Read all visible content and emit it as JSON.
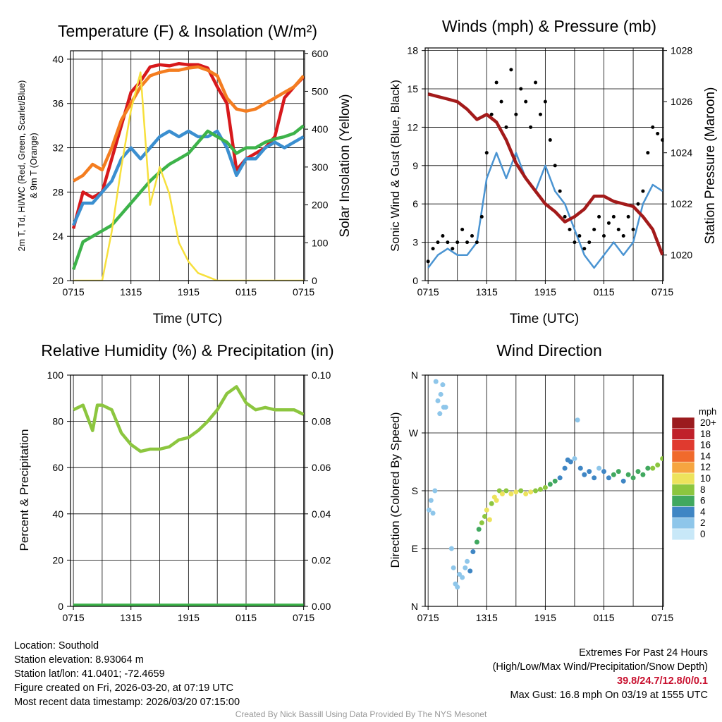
{
  "chart_data": [
    {
      "type": "line",
      "title": "Temperature (F) & Insolation (W/m²)",
      "xlabel": "Time (UTC)",
      "ylabel": [
        "2m T, Td, HI/WC (Red, Green, Scarlet/Blue)",
        "& 9m T (Orange)"
      ],
      "y2label": "Solar Insolation (Yellow)",
      "xticks": [
        "0715",
        "1315",
        "1915",
        "0115",
        "0715"
      ],
      "yticks": [
        20,
        24,
        28,
        32,
        36,
        40
      ],
      "y2ticks": [
        0,
        100,
        200,
        300,
        400,
        500,
        600
      ],
      "ylim": [
        20,
        40.76
      ],
      "y2lim": [
        0,
        607
      ],
      "x_hours": [
        0,
        1,
        2,
        3,
        4,
        5,
        6,
        7,
        8,
        9,
        10,
        11,
        12,
        13,
        14,
        15,
        16,
        17,
        18,
        19,
        20,
        21,
        22,
        23,
        24
      ],
      "series": [
        {
          "name": "2m T",
          "color": "#d7191c",
          "axis": "left",
          "values": [
            24.7,
            28,
            27.5,
            28,
            31,
            34,
            37,
            38,
            39.3,
            39.5,
            39.4,
            39.6,
            39.5,
            39.5,
            39.2,
            37.5,
            36,
            30,
            31,
            31.5,
            32,
            33,
            36.5,
            37.5,
            38.4
          ]
        },
        {
          "name": "9m T",
          "color": "#f47d20",
          "axis": "left",
          "values": [
            29,
            29.5,
            30.5,
            30,
            32,
            34.5,
            36,
            37.5,
            38.5,
            38.8,
            39,
            39,
            39.2,
            39.3,
            39,
            38.5,
            36.5,
            35.5,
            35.3,
            35.5,
            36,
            36.5,
            37,
            37.5,
            38.5
          ]
        },
        {
          "name": "HI/WC",
          "color": "#3b8fd0",
          "axis": "left",
          "values": [
            25,
            27,
            27,
            28,
            29,
            31,
            32,
            31,
            32,
            33,
            33.5,
            33,
            33.5,
            33,
            33,
            33.5,
            32,
            29.5,
            31,
            31,
            32,
            32.5,
            32,
            32.5,
            33
          ]
        },
        {
          "name": "Td",
          "color": "#3db34a",
          "axis": "left",
          "values": [
            21,
            23.5,
            24,
            24.5,
            25,
            26,
            27,
            28,
            29,
            29.8,
            30.5,
            31,
            31.5,
            32.5,
            33.5,
            33,
            32.5,
            31.5,
            32,
            32,
            32.5,
            32.8,
            33,
            33.3,
            34
          ]
        },
        {
          "name": "Solar Insolation",
          "color": "#f7e03c",
          "axis": "right",
          "values": [
            0,
            0,
            0,
            0,
            130,
            300,
            450,
            550,
            200,
            300,
            230,
            100,
            50,
            20,
            10,
            0,
            0,
            0,
            0,
            0,
            0,
            0,
            0,
            0,
            0
          ]
        }
      ]
    },
    {
      "type": "line",
      "title": "Winds (mph) & Pressure (mb)",
      "xlabel": "Time (UTC)",
      "ylabel": "Sonic Wind & Gust (Blue, Black)",
      "y2label": "Station Pressure (Maroon)",
      "xticks": [
        "0715",
        "1315",
        "1915",
        "0115",
        "0715"
      ],
      "yticks": [
        0,
        3,
        6,
        9,
        12,
        15,
        18
      ],
      "y2ticks": [
        1020,
        1022,
        1024,
        1026,
        1028
      ],
      "ylim": [
        0,
        18.2
      ],
      "y2lim": [
        1019.0,
        1028.1
      ],
      "x_hours": [
        0,
        1,
        2,
        3,
        4,
        5,
        6,
        7,
        8,
        9,
        10,
        11,
        12,
        13,
        14,
        15,
        16,
        17,
        18,
        19,
        20,
        21,
        22,
        23,
        24
      ],
      "series": [
        {
          "name": "Sonic Wind",
          "color": "#4a94d2",
          "axis": "left",
          "values": [
            1,
            2,
            2.5,
            2,
            2,
            3,
            8,
            10,
            8,
            10,
            8,
            7,
            9,
            7,
            6,
            4,
            2,
            1,
            2,
            3,
            2,
            3,
            6,
            7.5,
            7
          ]
        },
        {
          "name": "Station Pressure",
          "color": "#a31a1a",
          "axis": "right",
          "values": [
            1026.3,
            1026.2,
            1026.1,
            1026,
            1025.7,
            1025.3,
            1025.5,
            1025.2,
            1024.5,
            1023.6,
            1023,
            1022.5,
            1022,
            1021.7,
            1021.3,
            1021.5,
            1021.8,
            1022.3,
            1022.3,
            1022.1,
            1022,
            1021.9,
            1021.5,
            1021,
            1020
          ]
        }
      ],
      "gusts": {
        "name": "Gust",
        "color": "#000000",
        "x_hours": [
          0,
          0.5,
          1,
          1.5,
          2,
          2.5,
          3,
          3.5,
          4,
          4.5,
          5,
          5.5,
          6,
          6.5,
          7,
          7.5,
          8,
          8.5,
          9,
          9.5,
          10,
          10.5,
          11,
          11.5,
          12,
          12.5,
          13,
          13.5,
          14,
          14.5,
          15,
          15.5,
          16,
          16.5,
          17,
          17.5,
          18,
          18.5,
          19,
          19.5,
          20,
          20.5,
          21,
          21.5,
          22,
          22.5,
          23,
          23.5,
          24
        ],
        "values": [
          1.5,
          2.5,
          3,
          3.5,
          3,
          2.5,
          3,
          4,
          3,
          3.5,
          3,
          5,
          10,
          13,
          15.5,
          14,
          12,
          16.5,
          13,
          15,
          14,
          12,
          15.5,
          13,
          14,
          11,
          9,
          7,
          5,
          4,
          3,
          3.5,
          2.5,
          3,
          4,
          5,
          3.5,
          4.5,
          5,
          4,
          3.5,
          5,
          4,
          6,
          7,
          10,
          12,
          11.5,
          11
        ]
      }
    },
    {
      "type": "line",
      "title": "Relative Humidity (%) & Precipitation (in)",
      "xlabel": "",
      "ylabel": "Percent & Precipitation",
      "xticks": [
        "0715",
        "1315",
        "1915",
        "0115",
        "0715"
      ],
      "yticks": [
        0,
        20,
        40,
        60,
        80,
        100
      ],
      "y2ticks": [
        "0.00",
        "0.02",
        "0.04",
        "0.06",
        "0.08",
        "0.10"
      ],
      "ylim": [
        0,
        100
      ],
      "y2lim": [
        0,
        0.1
      ],
      "x_hours": [
        0,
        1,
        2,
        2.5,
        3,
        4,
        5,
        6,
        7,
        8,
        9,
        10,
        11,
        12,
        13,
        14,
        15,
        16,
        17,
        18,
        19,
        20,
        21,
        22,
        23,
        24
      ],
      "series": [
        {
          "name": "Relative Humidity",
          "color": "#8cc63f",
          "axis": "left",
          "values": [
            85,
            87,
            76,
            87,
            87,
            85,
            75,
            70,
            67,
            68,
            68,
            69,
            72,
            73,
            76,
            80,
            85,
            92,
            95,
            88,
            85,
            86,
            85,
            85,
            85,
            83
          ]
        },
        {
          "name": "Precipitation",
          "color": "#3db34a",
          "axis": "right",
          "values": [
            0,
            0,
            0,
            0,
            0,
            0,
            0,
            0,
            0,
            0,
            0,
            0,
            0,
            0,
            0,
            0,
            0,
            0,
            0,
            0,
            0,
            0,
            0,
            0,
            0,
            0
          ]
        }
      ]
    },
    {
      "type": "scatter",
      "title": "Wind Direction",
      "xlabel": "",
      "ylabel": "Direction (Colored By Speed)",
      "xticks": [
        "0715",
        "1315",
        "1915",
        "0115",
        "0715"
      ],
      "yticks": [
        "N",
        "E",
        "S",
        "W",
        "N"
      ],
      "ylim": [
        0,
        360
      ],
      "colorbar": {
        "title": "mph",
        "labels": [
          "20+",
          "18",
          "16",
          "14",
          "12",
          "10",
          "8",
          "6",
          "4",
          "2",
          "0"
        ],
        "colors": [
          "#9b1b1e",
          "#c0202a",
          "#e03a2f",
          "#f06a2c",
          "#f6a540",
          "#ede35c",
          "#8cc63f",
          "#41a85f",
          "#3f86c4",
          "#8ec6ea",
          "#c8e8f8"
        ]
      },
      "points": [
        [
          0.1,
          150,
          2
        ],
        [
          0.3,
          165,
          2
        ],
        [
          0.5,
          145,
          2
        ],
        [
          0.7,
          180,
          1
        ],
        [
          0.8,
          350,
          1
        ],
        [
          1,
          320,
          1
        ],
        [
          1.2,
          300,
          2
        ],
        [
          1.3,
          330,
          1
        ],
        [
          1.5,
          345,
          2
        ],
        [
          1.6,
          310,
          2
        ],
        [
          1.8,
          310,
          2
        ],
        [
          2.4,
          90,
          2
        ],
        [
          2.6,
          60,
          2
        ],
        [
          2.8,
          35,
          2
        ],
        [
          3,
          30,
          2
        ],
        [
          3.2,
          50,
          2
        ],
        [
          3.5,
          45,
          2
        ],
        [
          3.8,
          60,
          2
        ],
        [
          4,
          70,
          2
        ],
        [
          4.3,
          55,
          3
        ],
        [
          4.6,
          85,
          3
        ],
        [
          5,
          100,
          5
        ],
        [
          5.2,
          120,
          6
        ],
        [
          5.5,
          130,
          7
        ],
        [
          5.8,
          140,
          8
        ],
        [
          6,
          150,
          9
        ],
        [
          6.3,
          135,
          10
        ],
        [
          6.5,
          160,
          8
        ],
        [
          6.8,
          170,
          9
        ],
        [
          7,
          165,
          10
        ],
        [
          7.3,
          180,
          8
        ],
        [
          7.6,
          175,
          9
        ],
        [
          8,
          180,
          8
        ],
        [
          8.5,
          175,
          9
        ],
        [
          9,
          178,
          10
        ],
        [
          9.5,
          180,
          8
        ],
        [
          10,
          175,
          10
        ],
        [
          10.5,
          178,
          9
        ],
        [
          11,
          180,
          8
        ],
        [
          11.5,
          182,
          7
        ],
        [
          12,
          185,
          8
        ],
        [
          12.5,
          190,
          6
        ],
        [
          13,
          195,
          5
        ],
        [
          13.5,
          200,
          4
        ],
        [
          14,
          215,
          3
        ],
        [
          14.3,
          228,
          3
        ],
        [
          14.6,
          225,
          4
        ],
        [
          15,
          230,
          2
        ],
        [
          15.3,
          290,
          2
        ],
        [
          15.6,
          215,
          4
        ],
        [
          16,
          205,
          3
        ],
        [
          16.5,
          210,
          4
        ],
        [
          17,
          200,
          3
        ],
        [
          17.5,
          215,
          2
        ],
        [
          18,
          210,
          4
        ],
        [
          18.5,
          200,
          4
        ],
        [
          19,
          205,
          5
        ],
        [
          19.5,
          210,
          6
        ],
        [
          20,
          195,
          4
        ],
        [
          20.5,
          205,
          6
        ],
        [
          21,
          200,
          5
        ],
        [
          21.5,
          210,
          6
        ],
        [
          22,
          205,
          6
        ],
        [
          22.5,
          215,
          6
        ],
        [
          23,
          215,
          7
        ],
        [
          23.5,
          220,
          7
        ],
        [
          24,
          230,
          8
        ]
      ]
    }
  ],
  "footer": {
    "location": "Location: Southold",
    "elevation": "Station elevation: 8.93064 m",
    "latlon": "Station lat/lon: 41.0401; -72.4659",
    "created": "Figure created on Fri, 2026-03-20, at 07:19 UTC",
    "recent": "Most recent data timestamp: 2026/03/20 07:15:00",
    "extremes_title": "Extremes For Past 24 Hours",
    "extremes_legend": "(High/Low/Max Wind/Precipitation/Snow Depth)",
    "extremes_values": "39.8/24.7/12.8/0/0.1",
    "max_gust": "Max Gust: 16.8 mph On 03/19 at 1555 UTC",
    "credit": "Created By Nick Bassill Using Data Provided By The NYS Mesonet"
  }
}
